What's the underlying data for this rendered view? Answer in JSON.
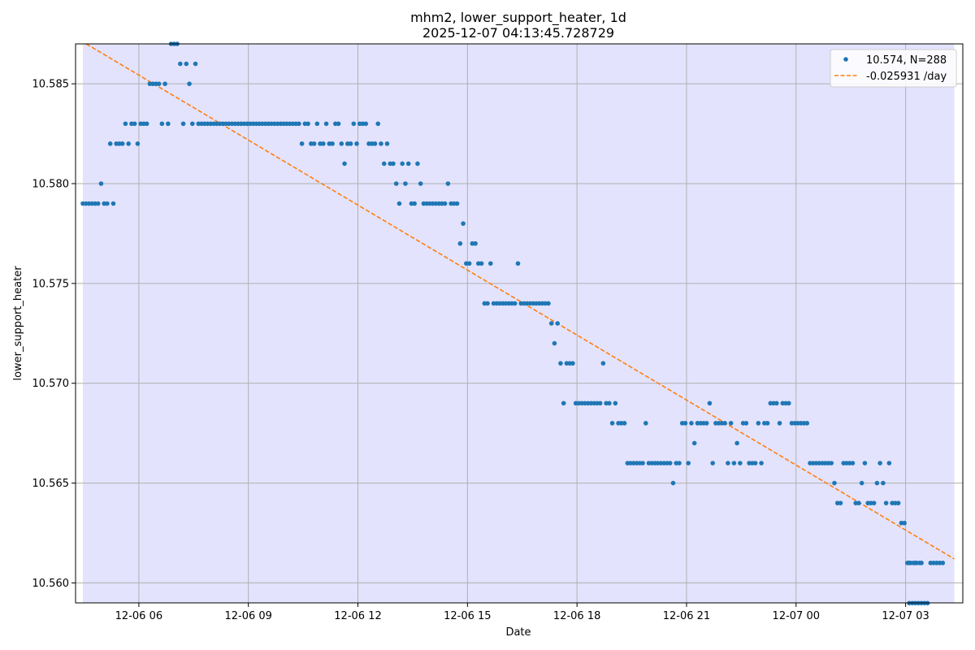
{
  "chart_data": {
    "type": "scatter",
    "title_line1": "mhm2, lower_support_heater, 1d",
    "title_line2": "2025-12-07 04:13:45.728729",
    "xlabel": "Date",
    "ylabel": "lower_support_heater",
    "xlim": [
      "2025-12-06 04:16",
      "2025-12-07 04:34"
    ],
    "ylim": [
      10.559,
      10.587
    ],
    "grid": true,
    "legend_position": "upper right",
    "x_ticks": [
      {
        "t": "2025-12-06 06:00",
        "label": "12-06 06"
      },
      {
        "t": "2025-12-06 09:00",
        "label": "12-06 09"
      },
      {
        "t": "2025-12-06 12:00",
        "label": "12-06 12"
      },
      {
        "t": "2025-12-06 15:00",
        "label": "12-06 15"
      },
      {
        "t": "2025-12-06 18:00",
        "label": "12-06 18"
      },
      {
        "t": "2025-12-06 21:00",
        "label": "12-06 21"
      },
      {
        "t": "2025-12-07 00:00",
        "label": "12-07 00"
      },
      {
        "t": "2025-12-07 03:00",
        "label": "12-07 03"
      }
    ],
    "y_ticks": [
      {
        "v": 10.56,
        "label": "10.560"
      },
      {
        "v": 10.565,
        "label": "10.565"
      },
      {
        "v": 10.57,
        "label": "10.570"
      },
      {
        "v": 10.575,
        "label": "10.575"
      },
      {
        "v": 10.58,
        "label": "10.580"
      },
      {
        "v": 10.585,
        "label": "10.585"
      }
    ],
    "shaded_span": {
      "start": "2025-12-06 04:28",
      "end": "2025-12-07 04:20",
      "color": "#e3e3fe"
    },
    "series": [
      {
        "name": "10.574, N=288",
        "kind": "scatter",
        "color": "#1f77b4",
        "runs": [
          {
            "start": "2025-12-06 04:28",
            "step_min": 5,
            "values": [
              10.579,
              10.579,
              10.579,
              10.579,
              10.579,
              10.579,
              10.58,
              10.579,
              10.579,
              10.582,
              10.579,
              10.582,
              10.582,
              10.582,
              10.583,
              10.582,
              10.583,
              10.583,
              10.582,
              10.583,
              10.583,
              10.583,
              10.585,
              10.585,
              10.585,
              10.585,
              10.583,
              10.585,
              10.583,
              10.587,
              10.587,
              10.587,
              10.586,
              10.583,
              10.586,
              10.585,
              10.583,
              10.586,
              10.583,
              10.583,
              10.583,
              10.583,
              10.583,
              10.583,
              10.583,
              10.583,
              10.583,
              10.583,
              10.583,
              10.583,
              10.583,
              10.583,
              10.583,
              10.583,
              10.583,
              10.583,
              10.583,
              10.583,
              10.583,
              10.583,
              10.583,
              10.583,
              10.583,
              10.583,
              10.583,
              10.583,
              10.583,
              10.583,
              10.583,
              10.583,
              10.583,
              10.583,
              10.582,
              10.583,
              10.583,
              10.582,
              10.582,
              10.583,
              10.582,
              10.582,
              10.583,
              10.582,
              10.582,
              10.583,
              10.583,
              10.582,
              10.581,
              10.582,
              10.582,
              10.583,
              10.582,
              10.583,
              10.583,
              10.583,
              10.582,
              10.582,
              10.582,
              10.583,
              10.582,
              10.581,
              10.582,
              10.581,
              10.581,
              10.58,
              10.579,
              10.581,
              10.58,
              10.581,
              10.579,
              10.579,
              10.581,
              10.58,
              10.579,
              10.579,
              10.579,
              10.579,
              10.579,
              10.579,
              10.579,
              10.579,
              10.58,
              10.579,
              10.579,
              10.579,
              10.577,
              10.578,
              10.576,
              10.576,
              10.577,
              10.577,
              10.576,
              10.576,
              10.574,
              10.574,
              10.576,
              10.574,
              10.574,
              10.574,
              10.574,
              10.574,
              10.574,
              10.574,
              10.574,
              10.576,
              10.574,
              10.574,
              10.574,
              10.574,
              10.574,
              10.574,
              10.574,
              10.574,
              10.574,
              10.574,
              10.573,
              10.572,
              10.573,
              10.571,
              10.569,
              10.571,
              10.571,
              10.571,
              10.569,
              10.569,
              10.569,
              10.569,
              10.569,
              10.569,
              10.569,
              10.569,
              10.569,
              10.571,
              10.569,
              10.569,
              10.568,
              10.569,
              10.568,
              10.568,
              10.568,
              10.566,
              10.566,
              10.566,
              10.566,
              10.566,
              10.566,
              10.568,
              10.566,
              10.566,
              10.566,
              10.566,
              10.566,
              10.566,
              10.566,
              10.566,
              10.565,
              10.566,
              10.566,
              10.568,
              10.568,
              10.566,
              10.568,
              10.567,
              10.568,
              10.568,
              10.568,
              10.568,
              10.569,
              10.566,
              10.568,
              10.568,
              10.568,
              10.568,
              10.566,
              10.568,
              10.566,
              10.567,
              10.566,
              10.568,
              10.568,
              10.566,
              10.566,
              10.566,
              10.568,
              10.566,
              10.568,
              10.568,
              10.569,
              10.569,
              10.569,
              10.568,
              10.569,
              10.569,
              10.569,
              10.568,
              10.568,
              10.568,
              10.568,
              10.568,
              10.568,
              10.566,
              10.566,
              10.566,
              10.566,
              10.566,
              10.566,
              10.566,
              10.566,
              10.565,
              10.564,
              10.564,
              10.566,
              10.566,
              10.566,
              10.566,
              10.564,
              10.564,
              10.565,
              10.566,
              10.564,
              10.564,
              10.564,
              10.565,
              10.566,
              10.565,
              10.564,
              10.566,
              10.564,
              10.564,
              10.564,
              10.563,
              10.563,
              10.561,
              10.561,
              10.561,
              10.561,
              10.561
            ]
          },
          {
            "start": "2025-12-07 03:06",
            "step_min": 10,
            "values": [
              10.561,
              10.561,
              10.561
            ]
          },
          {
            "start": "2025-12-07 03:41",
            "step_min": 5,
            "values": [
              10.561,
              10.561,
              10.561,
              10.561,
              10.561
            ]
          }
        ]
      },
      {
        "name": "-0.025931 /day",
        "kind": "trend-line",
        "color": "#ff7f0e",
        "points": [
          {
            "t": "2025-12-06 04:28",
            "v": 10.5871
          },
          {
            "t": "2025-12-07 04:20",
            "v": 10.5612
          }
        ]
      }
    ],
    "below_axis_points": {
      "color": "#1f77b4",
      "times": [
        "2025-12-07 03:06",
        "2025-12-07 03:11",
        "2025-12-07 03:16",
        "2025-12-07 03:21",
        "2025-12-07 03:26",
        "2025-12-07 03:31",
        "2025-12-07 03:36"
      ]
    }
  }
}
